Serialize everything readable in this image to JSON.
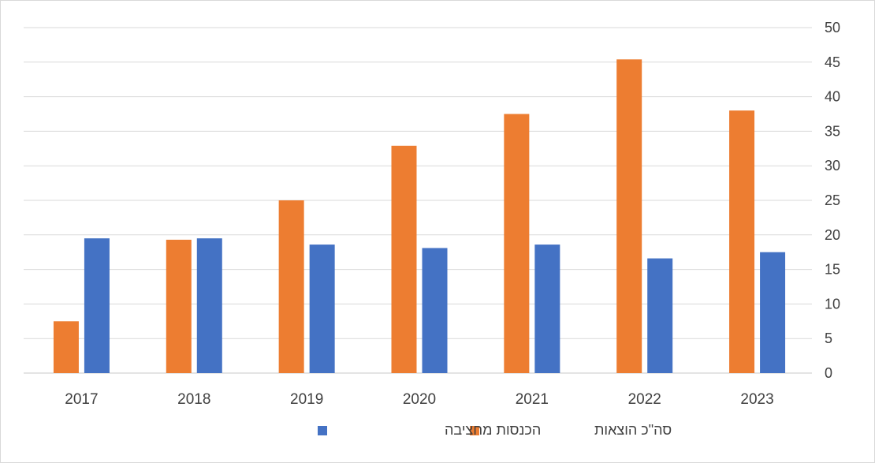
{
  "chart_data": {
    "type": "bar",
    "categories": [
      "2017",
      "2018",
      "2019",
      "2020",
      "2021",
      "2022",
      "2023"
    ],
    "series": [
      {
        "name": "סה\"כ הוצאות",
        "color": "#ED7D31",
        "values": [
          7.5,
          19.3,
          25.0,
          32.9,
          37.5,
          45.4,
          38.0
        ]
      },
      {
        "name": "הכנסות מחציבה",
        "color": "#4472C4",
        "values": [
          19.5,
          19.5,
          18.6,
          18.1,
          18.6,
          16.6,
          17.5
        ]
      }
    ],
    "ylim": [
      0,
      50
    ],
    "yticks": [
      0,
      5,
      10,
      15,
      20,
      25,
      30,
      35,
      40,
      45,
      50
    ],
    "y_axis_side": "right",
    "grid": true,
    "legend_position": "bottom"
  }
}
